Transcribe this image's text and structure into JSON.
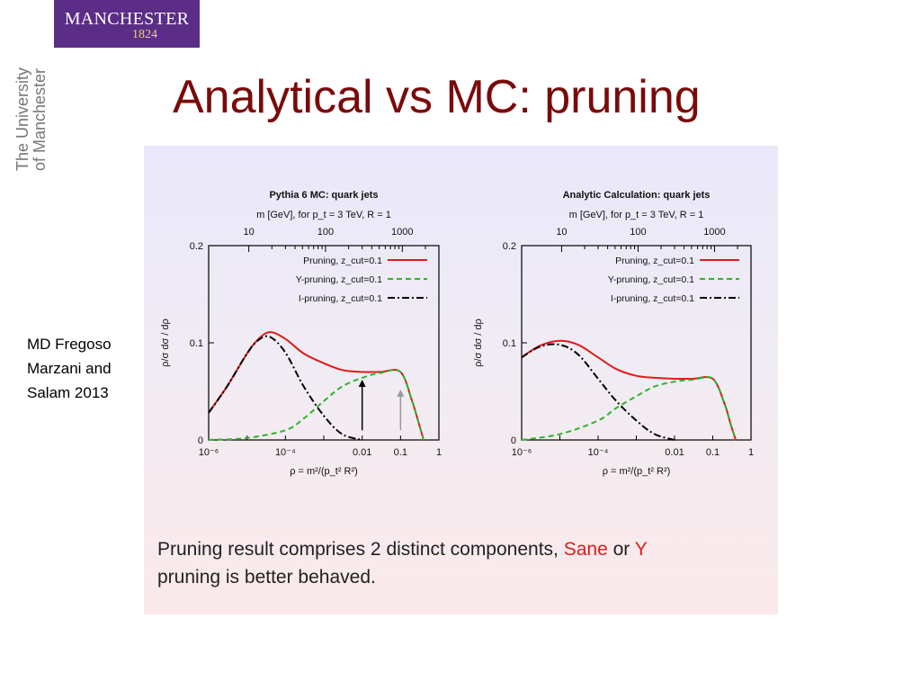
{
  "slide": {
    "logo_name": "MANCHESTER",
    "logo_year": "1824",
    "university_line1": "The University",
    "university_line2": "of Manchester",
    "title": "Analytical vs MC: pruning",
    "citation_lines": [
      "MD Fregoso",
      "Marzani and",
      "Salam 2013"
    ],
    "caption_part1": "Pruning result comprises 2 distinct components, ",
    "caption_sane": "Sane",
    "caption_or": " or ",
    "caption_y": "Y",
    "caption_part2": "pruning is better behaved."
  },
  "colors": {
    "title": "#7a0a0a",
    "logo_bg": "#5b2d86",
    "pruning": "#e01b1b",
    "y_pruning": "#2ab52a",
    "i_pruning": "#000000",
    "highlight": "#e01b1b"
  },
  "chart_data": [
    {
      "type": "line",
      "title": "Pythia 6 MC: quark jets",
      "top_axis_label": "m [GeV], for p_t = 3 TeV, R = 1",
      "top_ticks": [
        "10",
        "100",
        "1000"
      ],
      "xlabel": "ρ = m²/(p_t² R²)",
      "ylabel": "ρ/σ dσ / dρ",
      "xscale": "log",
      "xlim": [
        1e-06,
        1
      ],
      "ylim": [
        0,
        0.2
      ],
      "x_tick_labels": [
        "10⁻⁶",
        "10⁻⁴",
        "0.01",
        "0.1",
        "1"
      ],
      "y_tick_labels": [
        "0.2",
        "0.1",
        "0"
      ],
      "legend_position": "top-right",
      "series": [
        {
          "name": "Pruning, z_cut=0.1",
          "style": "solid",
          "color": "#e01b1b",
          "x": [
            1e-06,
            3e-06,
            1e-05,
            2e-05,
            4e-05,
            0.0001,
            0.0003,
            0.001,
            0.003,
            0.01,
            0.03,
            0.1,
            0.2,
            0.3,
            0.4
          ],
          "y": [
            0.028,
            0.055,
            0.089,
            0.104,
            0.111,
            0.104,
            0.089,
            0.079,
            0.072,
            0.07,
            0.07,
            0.07,
            0.04,
            0.017,
            0.0
          ]
        },
        {
          "name": "Y-pruning, z_cut=0.1",
          "style": "dashed",
          "color": "#2ab52a",
          "x": [
            1e-06,
            1e-05,
            0.0001,
            0.0003,
            0.001,
            0.003,
            0.01,
            0.03,
            0.1,
            0.2,
            0.3,
            0.4
          ],
          "y": [
            0.0,
            0.002,
            0.01,
            0.022,
            0.04,
            0.055,
            0.064,
            0.069,
            0.07,
            0.04,
            0.017,
            0.0
          ]
        },
        {
          "name": "I-pruning, z_cut=0.1",
          "style": "dashdot",
          "color": "#000000",
          "x": [
            1e-06,
            3e-06,
            1e-05,
            2e-05,
            4e-05,
            0.0001,
            0.0003,
            0.001,
            0.003,
            0.01
          ],
          "y": [
            0.028,
            0.055,
            0.089,
            0.103,
            0.106,
            0.09,
            0.055,
            0.025,
            0.006,
            0.0
          ]
        }
      ],
      "annotations": [
        {
          "type": "arrow",
          "x": 0.01,
          "y_from": 0.01,
          "y_to": 0.062,
          "color": "#000000"
        },
        {
          "type": "arrow",
          "x": 0.1,
          "y_from": 0.01,
          "y_to": 0.052,
          "color": "#999999"
        }
      ]
    },
    {
      "type": "line",
      "title": "Analytic Calculation: quark jets",
      "top_axis_label": "m [GeV], for p_t = 3 TeV, R = 1",
      "top_ticks": [
        "10",
        "100",
        "1000"
      ],
      "xlabel": "ρ = m²/(p_t² R²)",
      "ylabel": "ρ/σ dσ / dρ",
      "xscale": "log",
      "xlim": [
        1e-06,
        1
      ],
      "ylim": [
        0,
        0.2
      ],
      "x_tick_labels": [
        "10⁻⁶",
        "10⁻⁴",
        "0.01",
        "0.1",
        "1"
      ],
      "y_tick_labels": [
        "0.2",
        "0.1",
        "0"
      ],
      "legend_position": "top-right",
      "series": [
        {
          "name": "Pruning, z_cut=0.1",
          "style": "solid",
          "color": "#e01b1b",
          "x": [
            1e-06,
            3e-06,
            1e-05,
            3e-05,
            0.0001,
            0.0003,
            0.001,
            0.003,
            0.01,
            0.03,
            0.1,
            0.2,
            0.3,
            0.4
          ],
          "y": [
            0.085,
            0.097,
            0.102,
            0.098,
            0.085,
            0.073,
            0.066,
            0.064,
            0.063,
            0.063,
            0.063,
            0.038,
            0.015,
            0.0
          ]
        },
        {
          "name": "Y-pruning, z_cut=0.1",
          "style": "dashed",
          "color": "#2ab52a",
          "x": [
            1e-06,
            1e-05,
            0.0001,
            0.0003,
            0.001,
            0.003,
            0.01,
            0.03,
            0.1,
            0.2,
            0.3,
            0.4
          ],
          "y": [
            0.0,
            0.006,
            0.02,
            0.033,
            0.045,
            0.055,
            0.06,
            0.062,
            0.063,
            0.038,
            0.015,
            0.0
          ]
        },
        {
          "name": "I-pruning, z_cut=0.1",
          "style": "dashdot",
          "color": "#000000",
          "x": [
            1e-06,
            3e-06,
            1e-05,
            3e-05,
            0.0001,
            0.0003,
            0.001,
            0.003,
            0.01
          ],
          "y": [
            0.085,
            0.096,
            0.098,
            0.088,
            0.063,
            0.04,
            0.02,
            0.006,
            0.0
          ]
        }
      ],
      "annotations": []
    }
  ]
}
